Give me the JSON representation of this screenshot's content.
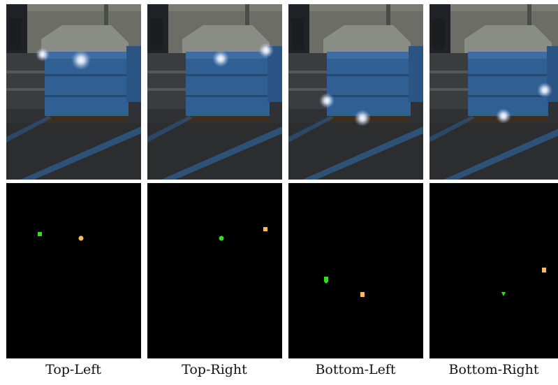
{
  "figure": {
    "columns": [
      {
        "caption": "Top-Left"
      },
      {
        "caption": "Top-Right"
      },
      {
        "caption": "Bottom-Left"
      },
      {
        "caption": "Bottom-Right"
      }
    ]
  },
  "colors": {
    "background": "#ffffff",
    "mask_background": "#000000",
    "green_marker": "#33dd22",
    "orange_marker": "#ffbb55",
    "light_glow": "#ffffff",
    "crate_blue": "#2f5f93"
  }
}
